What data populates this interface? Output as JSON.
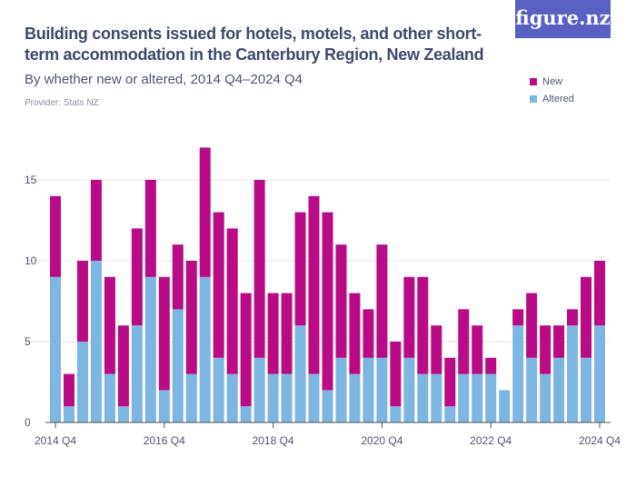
{
  "header": {
    "title": "Building consents issued for hotels, motels, and other short-term accommodation in the Canterbury Region, New Zealand",
    "subtitle": "By whether new or altered, 2014 Q4–2024 Q4",
    "provider": "Provider: Stats NZ",
    "logo": "figure.nz"
  },
  "colors": {
    "new": "#b90b86",
    "altered": "#7db5e3",
    "brand": "#5a5fc2"
  },
  "chart_data": {
    "type": "bar",
    "stacked": true,
    "ylim": [
      0,
      17
    ],
    "yticks": [
      0,
      5,
      10,
      15
    ],
    "grid": true,
    "legend": "top-right",
    "xtick_labels": [
      "2014 Q4",
      "2016 Q4",
      "2018 Q4",
      "2020 Q4",
      "2022 Q4",
      "2024 Q4"
    ],
    "categories": [
      "2014 Q4",
      "2015 Q1",
      "2015 Q2",
      "2015 Q3",
      "2015 Q4",
      "2016 Q1",
      "2016 Q2",
      "2016 Q3",
      "2016 Q4",
      "2017 Q1",
      "2017 Q2",
      "2017 Q3",
      "2017 Q4",
      "2018 Q1",
      "2018 Q2",
      "2018 Q3",
      "2018 Q4",
      "2019 Q1",
      "2019 Q2",
      "2019 Q3",
      "2019 Q4",
      "2020 Q1",
      "2020 Q2",
      "2020 Q3",
      "2020 Q4",
      "2021 Q1",
      "2021 Q2",
      "2021 Q3",
      "2021 Q4",
      "2022 Q1",
      "2022 Q2",
      "2022 Q3",
      "2022 Q4",
      "2023 Q1",
      "2023 Q2",
      "2023 Q3",
      "2023 Q4",
      "2024 Q1",
      "2024 Q2",
      "2024 Q3",
      "2024 Q4"
    ],
    "series": [
      {
        "name": "Altered",
        "values": [
          9,
          1,
          5,
          10,
          3,
          1,
          6,
          9,
          2,
          7,
          3,
          9,
          4,
          3,
          1,
          4,
          3,
          3,
          6,
          3,
          2,
          4,
          3,
          4,
          4,
          1,
          4,
          3,
          3,
          1,
          3,
          3,
          3,
          2,
          6,
          4,
          3,
          4,
          6,
          4,
          6
        ]
      },
      {
        "name": "New",
        "values": [
          5,
          2,
          5,
          5,
          6,
          5,
          6,
          6,
          7,
          4,
          7,
          8,
          9,
          9,
          7,
          11,
          5,
          5,
          7,
          11,
          11,
          7,
          5,
          3,
          7,
          4,
          5,
          6,
          3,
          3,
          4,
          3,
          1,
          0,
          1,
          4,
          3,
          2,
          1,
          5,
          4
        ]
      }
    ]
  }
}
